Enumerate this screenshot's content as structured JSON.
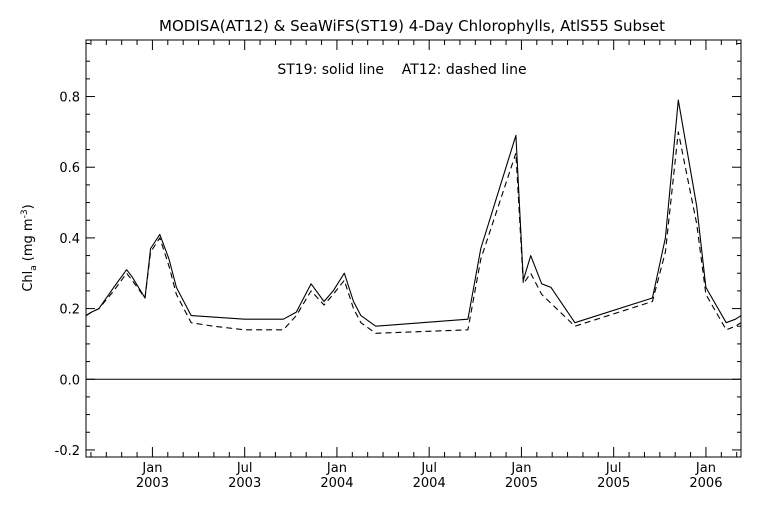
{
  "chart_data": {
    "type": "line",
    "title": "MODISA(AT12) & SeaWiFS(ST19) 4-Day Chlorophylls, AtlS55 Subset",
    "annotation": "ST19: solid line    AT12: dashed line",
    "ylabel_main": "Chl",
    "ylabel_sub": "a",
    "ylabel_units": "(mg m",
    "ylabel_exp": "-3",
    "ylabel_close": ")",
    "xlabel": "",
    "ylim": [
      -0.22,
      0.96
    ],
    "xlim": [
      2002.64,
      2006.19
    ],
    "grid": false,
    "zero_line": true,
    "yticks": [
      {
        "value": -0.2,
        "label": "-0.2"
      },
      {
        "value": 0.0,
        "label": "0.0"
      },
      {
        "value": 0.2,
        "label": "0.2"
      },
      {
        "value": 0.4,
        "label": "0.4"
      },
      {
        "value": 0.6,
        "label": "0.6"
      },
      {
        "value": 0.8,
        "label": "0.8"
      }
    ],
    "xticks": [
      {
        "value": 2003.0,
        "month": "Jan",
        "year": "2003"
      },
      {
        "value": 2003.5,
        "month": "Jul",
        "year": "2003"
      },
      {
        "value": 2004.0,
        "month": "Jan",
        "year": "2004"
      },
      {
        "value": 2004.5,
        "month": "Jul",
        "year": "2004"
      },
      {
        "value": 2005.0,
        "month": "Jan",
        "year": "2005"
      },
      {
        "value": 2005.5,
        "month": "Jul",
        "year": "2005"
      },
      {
        "value": 2006.0,
        "month": "Jan",
        "year": "2006"
      }
    ],
    "series": [
      {
        "name": "ST19",
        "style": "solid",
        "color": "#000000",
        "x": [
          2002.64,
          2002.67,
          2002.71,
          2002.79,
          2002.86,
          2002.89,
          2002.96,
          2002.99,
          2003.04,
          2003.09,
          2003.13,
          2003.21,
          2003.5,
          2003.71,
          2003.78,
          2003.86,
          2003.93,
          2003.98,
          2004.04,
          2004.09,
          2004.13,
          2004.21,
          2004.71,
          2004.78,
          2004.97,
          2005.01,
          2005.05,
          2005.11,
          2005.16,
          2005.29,
          2005.71,
          2005.78,
          2005.85,
          2005.95,
          2006.0,
          2006.11,
          2006.16,
          2006.19
        ],
        "y": [
          0.18,
          0.19,
          0.2,
          0.26,
          0.31,
          0.29,
          0.23,
          0.37,
          0.41,
          0.34,
          0.26,
          0.18,
          0.17,
          0.17,
          0.19,
          0.27,
          0.22,
          0.25,
          0.3,
          0.22,
          0.18,
          0.15,
          0.17,
          0.37,
          0.69,
          0.28,
          0.35,
          0.27,
          0.26,
          0.16,
          0.23,
          0.4,
          0.79,
          0.49,
          0.26,
          0.16,
          0.17,
          0.18
        ]
      },
      {
        "name": "AT12",
        "style": "dashed",
        "color": "#000000",
        "x": [
          2002.64,
          2002.67,
          2002.71,
          2002.79,
          2002.86,
          2002.89,
          2002.96,
          2002.99,
          2003.04,
          2003.09,
          2003.13,
          2003.21,
          2003.33,
          2003.5,
          2003.71,
          2003.78,
          2003.86,
          2003.93,
          2003.98,
          2004.04,
          2004.09,
          2004.13,
          2004.21,
          2004.71,
          2004.78,
          2004.97,
          2005.01,
          2005.05,
          2005.11,
          2005.29,
          2005.71,
          2005.78,
          2005.85,
          2005.95,
          2006.0,
          2006.11,
          2006.16,
          2006.19
        ],
        "y": [
          0.18,
          0.19,
          0.2,
          0.25,
          0.3,
          0.28,
          0.23,
          0.36,
          0.4,
          0.32,
          0.24,
          0.16,
          0.15,
          0.14,
          0.14,
          0.18,
          0.25,
          0.21,
          0.24,
          0.28,
          0.2,
          0.16,
          0.13,
          0.14,
          0.34,
          0.64,
          0.27,
          0.3,
          0.24,
          0.15,
          0.22,
          0.36,
          0.7,
          0.44,
          0.24,
          0.14,
          0.15,
          0.16
        ]
      }
    ]
  }
}
